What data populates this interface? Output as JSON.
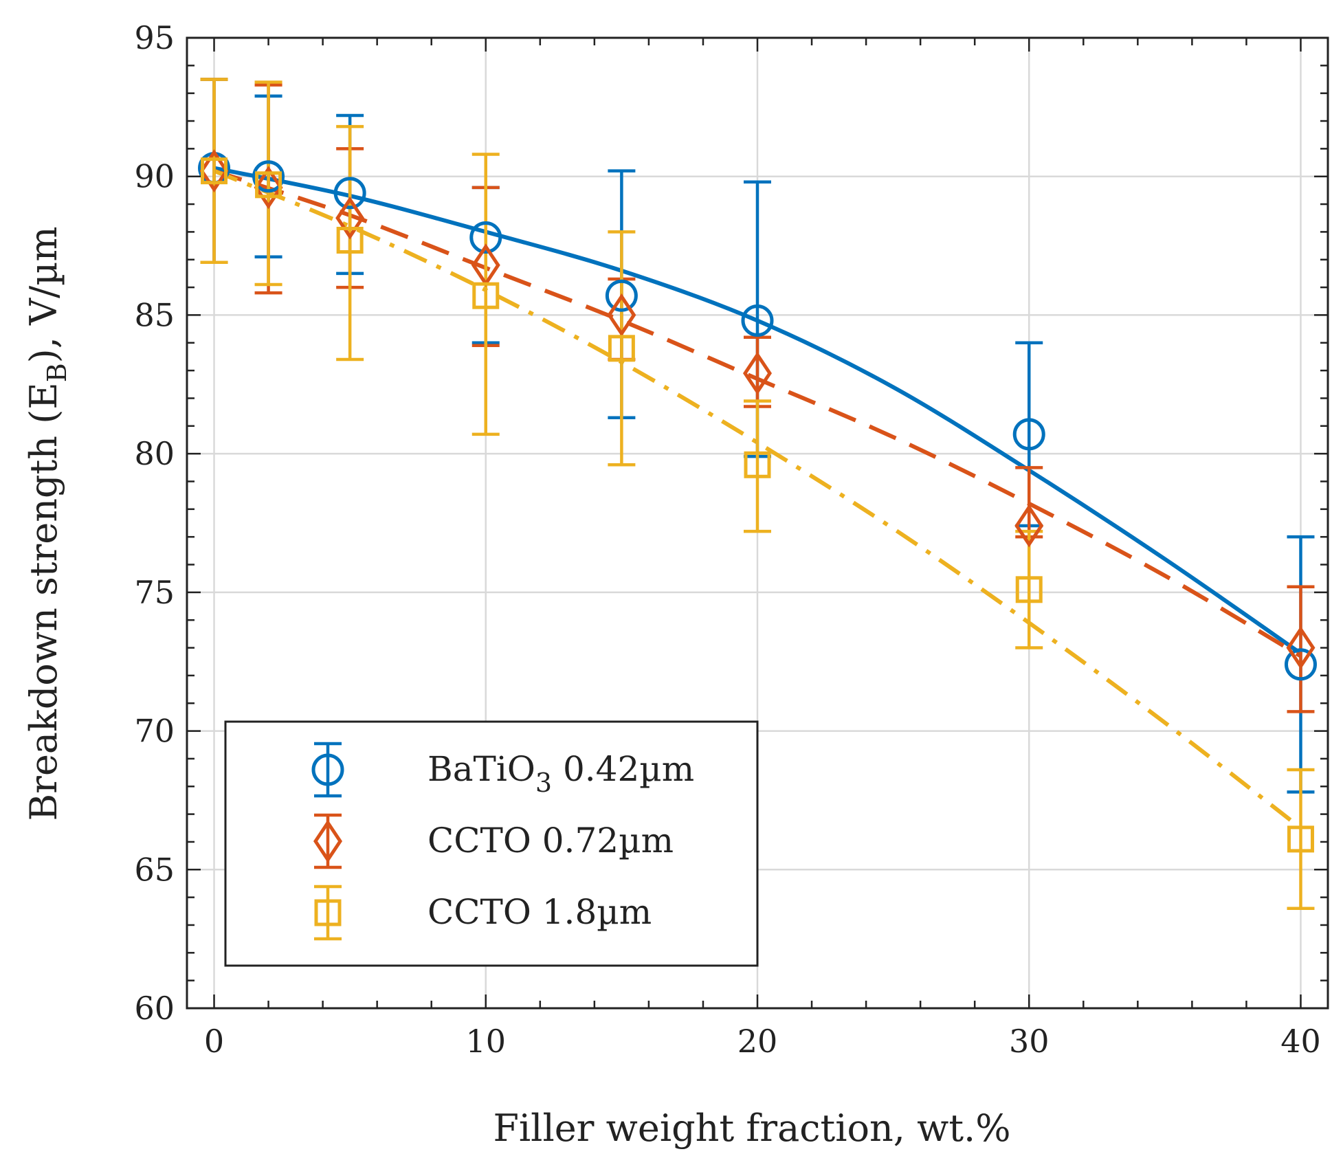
{
  "chart_data": {
    "type": "scatter",
    "title": "",
    "xlabel": "Filler weight fraction, wt.%",
    "ylabel": {
      "prefix": "Breakdown strength (E",
      "subscript": "B",
      "suffix": "), V/µm"
    },
    "xlim": [
      -1,
      41
    ],
    "ylim": [
      60,
      95
    ],
    "xticks": [
      0,
      10,
      20,
      30,
      40
    ],
    "yticks": [
      60,
      65,
      70,
      75,
      80,
      85,
      90,
      95
    ],
    "grid": true,
    "legend_position": "lower-left",
    "series": [
      {
        "name": "BaTiO3 0.42µm",
        "legend_label": {
          "prefix": "BaTiO",
          "subscript": "3",
          "suffix": " 0.42µm"
        },
        "color": "#0072BD",
        "marker": "circle",
        "fit_style": "solid",
        "x": [
          0,
          2,
          5,
          10,
          15,
          20,
          30,
          40
        ],
        "y": [
          90.3,
          90.0,
          89.4,
          87.8,
          85.7,
          84.8,
          80.7,
          72.4
        ],
        "err_low": [
          86.9,
          87.1,
          86.5,
          84.0,
          81.3,
          79.9,
          77.4,
          67.8
        ],
        "err_high": [
          93.5,
          92.9,
          92.2,
          89.6,
          90.2,
          89.8,
          84.0,
          77.0
        ],
        "fit": [
          [
            0,
            90.3
          ],
          [
            5,
            89.3
          ],
          [
            10,
            88.0
          ],
          [
            15,
            86.6
          ],
          [
            20,
            84.8
          ],
          [
            25,
            82.4
          ],
          [
            30,
            79.4
          ],
          [
            35,
            76.2
          ],
          [
            40,
            72.8
          ]
        ]
      },
      {
        "name": "CCTO 0.72µm",
        "legend_label": {
          "prefix": "CCTO 0.72µm",
          "subscript": "",
          "suffix": ""
        },
        "color": "#D95319",
        "marker": "diamond",
        "fit_style": "dashed",
        "x": [
          0,
          2,
          5,
          10,
          15,
          20,
          30,
          40
        ],
        "y": [
          90.2,
          89.6,
          88.5,
          86.8,
          85.0,
          82.9,
          77.4,
          73.0
        ],
        "err_low": [
          86.9,
          85.8,
          86.0,
          83.9,
          83.4,
          81.7,
          77.0,
          70.7
        ],
        "err_high": [
          93.5,
          93.3,
          91.0,
          89.6,
          86.3,
          84.2,
          79.5,
          75.2
        ],
        "fit": [
          [
            0,
            90.2
          ],
          [
            5,
            88.6
          ],
          [
            10,
            86.7
          ],
          [
            15,
            84.8
          ],
          [
            20,
            82.7
          ],
          [
            25,
            80.6
          ],
          [
            30,
            78.2
          ],
          [
            35,
            75.6
          ],
          [
            40,
            72.7
          ]
        ]
      },
      {
        "name": "CCTO 1.8µm",
        "legend_label": {
          "prefix": "CCTO 1.8µm",
          "subscript": "",
          "suffix": ""
        },
        "color": "#EDB120",
        "marker": "square",
        "fit_style": "dashdot",
        "x": [
          0,
          2,
          5,
          10,
          15,
          20,
          30,
          40
        ],
        "y": [
          90.2,
          89.7,
          87.7,
          85.7,
          83.8,
          79.6,
          75.1,
          66.1
        ],
        "err_low": [
          86.9,
          86.1,
          83.4,
          80.7,
          79.6,
          77.2,
          73.0,
          63.6
        ],
        "err_high": [
          93.5,
          93.4,
          91.8,
          90.8,
          88.0,
          81.9,
          77.2,
          68.6
        ],
        "fit": [
          [
            0,
            90.2
          ],
          [
            5,
            88.2
          ],
          [
            10,
            85.9
          ],
          [
            15,
            83.3
          ],
          [
            20,
            80.4
          ],
          [
            25,
            77.3
          ],
          [
            30,
            73.9
          ],
          [
            35,
            70.3
          ],
          [
            40,
            66.5
          ]
        ]
      }
    ]
  }
}
